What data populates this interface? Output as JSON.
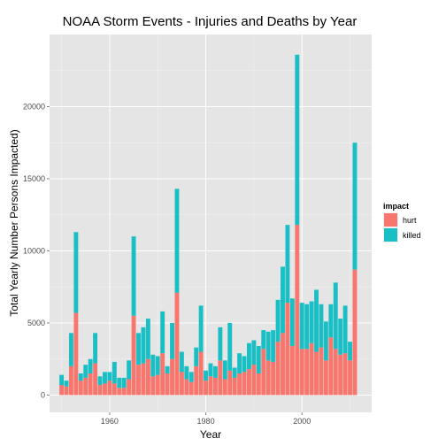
{
  "chart_data": {
    "type": "bar",
    "stacked": true,
    "title": "NOAA Storm Events - Injuries and Deaths by Year",
    "xlabel": "Year",
    "ylabel": "Total Yearly Number Persons Impacted)",
    "xlim": [
      1947.5,
      2014.5
    ],
    "ylim": [
      -1200,
      25000
    ],
    "x_ticks": [
      1960,
      1980,
      2000
    ],
    "y_ticks": [
      0,
      5000,
      10000,
      15000,
      20000
    ],
    "grid": true,
    "legend": {
      "title": "impact",
      "position": "right"
    },
    "colors": {
      "hurt": "#f8766d",
      "killed": "#19bfc4",
      "panel": "#e5e5e5",
      "grid_major": "#ffffff",
      "grid_minor": "#f2f2f2"
    },
    "years": [
      1950,
      1951,
      1952,
      1953,
      1954,
      1955,
      1956,
      1957,
      1958,
      1959,
      1960,
      1961,
      1962,
      1963,
      1964,
      1965,
      1966,
      1967,
      1968,
      1969,
      1970,
      1971,
      1972,
      1973,
      1974,
      1975,
      1976,
      1977,
      1978,
      1979,
      1980,
      1981,
      1982,
      1983,
      1984,
      1985,
      1986,
      1987,
      1988,
      1989,
      1990,
      1991,
      1992,
      1993,
      1994,
      1995,
      1996,
      1997,
      1998,
      1999,
      2000,
      2001,
      2002,
      2003,
      2004,
      2005,
      2006,
      2007,
      2008,
      2009,
      2010,
      2011
    ],
    "series": [
      {
        "name": "hurt",
        "values": [
          700,
          600,
          2000,
          5700,
          1000,
          1200,
          1500,
          2200,
          700,
          800,
          1000,
          800,
          500,
          500,
          1100,
          5500,
          2100,
          2200,
          2500,
          1300,
          1400,
          2900,
          1500,
          2500,
          7100,
          1600,
          1100,
          900,
          2000,
          3000,
          1000,
          1300,
          1200,
          2400,
          1100,
          1700,
          1200,
          1500,
          1600,
          1800,
          2100,
          1500,
          3200,
          2400,
          2300,
          3700,
          4300,
          6400,
          3400,
          11800,
          3200,
          3200,
          3600,
          3000,
          3300,
          2400,
          4000,
          3200,
          2800,
          2900,
          2400,
          8700
        ]
      },
      {
        "name": "killed",
        "values": [
          700,
          400,
          2300,
          5600,
          500,
          900,
          1000,
          2100,
          600,
          800,
          600,
          1500,
          700,
          700,
          1300,
          5500,
          2200,
          2500,
          2800,
          1500,
          1300,
          2900,
          500,
          2500,
          7200,
          1400,
          900,
          700,
          1300,
          3200,
          700,
          900,
          800,
          2300,
          1300,
          3300,
          700,
          1400,
          1100,
          1800,
          1700,
          1900,
          1300,
          2000,
          2200,
          2900,
          4600,
          5400,
          3300,
          11800,
          3200,
          3100,
          2900,
          4300,
          3000,
          2700,
          2300,
          4600,
          2500,
          3300,
          1300,
          8800
        ]
      }
    ]
  }
}
